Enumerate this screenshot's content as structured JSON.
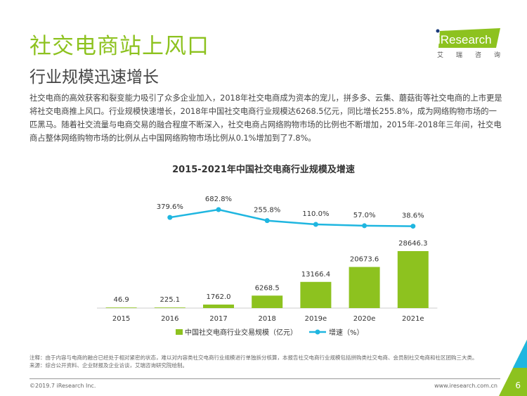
{
  "title": "社交电商站上风口",
  "subtitle": "行业规模迅速增长",
  "body": "社交电商的高效获客和裂变能力吸引了众多企业加入，2018年社交电商成为资本的宠儿，拼多多、云集、蘑菇街等社交电商的上市更是将社交电商推上风口。行业规模快速增长，2018年中国社交电商行业规模达6268.5亿元，同比增长255.8%，成为网络购物市场的一匹黑马。随着社交流量与电商交易的融合程度不断深入，社交电商占网络购物市场的比例也不断增加，2015年-2018年三年间，社交电商占整体网络购物市场的比例从占中国网络购物市场比例从0.1%增加到了7.8%。",
  "logo": {
    "text": "iResearch",
    "sub": [
      "艾",
      "瑞",
      "咨",
      "询"
    ]
  },
  "colors": {
    "accent": "#8dc21f",
    "line": "#1fb6e0"
  },
  "chart_data": {
    "type": "bar+line",
    "title": "2015-2021年中国社交电商行业规模及增速",
    "categories": [
      "2015",
      "2016",
      "2017",
      "2018",
      "2019e",
      "2020e",
      "2021e"
    ],
    "series": [
      {
        "name": "中国社交电商行业交易规模（亿元）",
        "type": "bar",
        "values": [
          46.9,
          225.1,
          1762.0,
          6268.5,
          13166.4,
          20673.6,
          28646.3
        ],
        "labels": [
          "46.9",
          "225.1",
          "1762.0",
          "6268.5",
          "13166.4",
          "20673.6",
          "28646.3"
        ]
      },
      {
        "name": "增速（%）",
        "type": "line",
        "values": [
          null,
          379.6,
          682.8,
          255.8,
          110.0,
          57.0,
          38.6
        ],
        "labels": [
          "",
          "379.6%",
          "682.8%",
          "255.8%",
          "110.0%",
          "57.0%",
          "38.6%"
        ]
      }
    ],
    "legend": "bottom"
  },
  "footer": {
    "note": "注释：由于内容与电商的融合已经处于相对紧密的状态，难以对内容类社交电商行业规模进行单独拆分核算，本报告社交电商行业规模包括拼购类社交电商、会员制社交电商和社区团购三大类。",
    "source": "来源：综合公开资料、企业财报及企业访谈，艾瑞咨询研究院绘制。",
    "copyright": "©2019.7 iResearch Inc.",
    "site": "www.iresearch.com.cn",
    "page": "6"
  }
}
